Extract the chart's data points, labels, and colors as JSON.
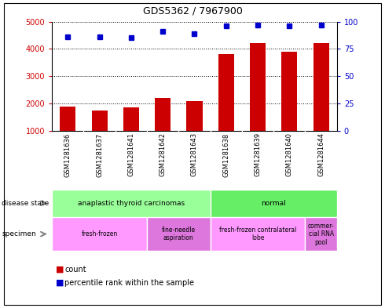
{
  "title": "GDS5362 / 7967900",
  "samples": [
    "GSM1281636",
    "GSM1281637",
    "GSM1281641",
    "GSM1281642",
    "GSM1281643",
    "GSM1281638",
    "GSM1281639",
    "GSM1281640",
    "GSM1281644"
  ],
  "counts": [
    1900,
    1750,
    1850,
    2200,
    2100,
    3800,
    4200,
    3900,
    4200
  ],
  "percentile_ranks": [
    86,
    86,
    85,
    91,
    89,
    96,
    97,
    96,
    97
  ],
  "ylim_left": [
    1000,
    5000
  ],
  "ylim_right": [
    0,
    100
  ],
  "yticks_left": [
    1000,
    2000,
    3000,
    4000,
    5000
  ],
  "yticks_right": [
    0,
    25,
    50,
    75,
    100
  ],
  "bar_color": "#cc0000",
  "dot_color": "#0000cc",
  "disease_state_groups": [
    {
      "label": "anaplastic thyroid carcinomas",
      "start": 0,
      "end": 5,
      "color": "#99ff99"
    },
    {
      "label": "normal",
      "start": 5,
      "end": 9,
      "color": "#66ee66"
    }
  ],
  "specimen_groups": [
    {
      "label": "fresh-frozen",
      "start": 0,
      "end": 3,
      "color": "#ff99ff"
    },
    {
      "label": "fine-needle\naspiration",
      "start": 3,
      "end": 5,
      "color": "#dd77dd"
    },
    {
      "label": "fresh-frozen contralateral\nlobe",
      "start": 5,
      "end": 8,
      "color": "#ff99ff"
    },
    {
      "label": "commer-\ncial RNA\npool",
      "start": 8,
      "end": 9,
      "color": "#dd77dd"
    }
  ],
  "grid_color": "#000000",
  "bg_color": "#ffffff",
  "label_color_left": "#cc0000",
  "label_color_right": "#0000cc",
  "sample_bg_color": "#c8c8c8",
  "plot_bg_color": "#ffffff"
}
